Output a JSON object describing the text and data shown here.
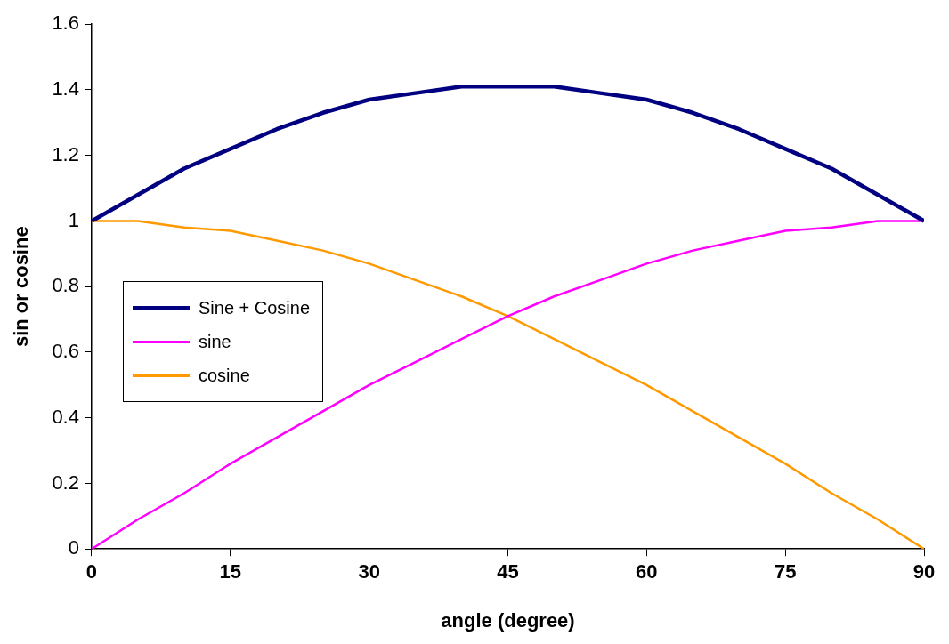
{
  "chart_data": {
    "type": "line",
    "xlabel": "angle (degree)",
    "ylabel": "sin or cosine",
    "x": [
      0,
      5,
      10,
      15,
      20,
      25,
      30,
      35,
      40,
      45,
      50,
      55,
      60,
      65,
      70,
      75,
      80,
      85,
      90
    ],
    "series": [
      {
        "name": "Sine + Cosine",
        "color": "#000080",
        "values": [
          1,
          1.08,
          1.16,
          1.22,
          1.28,
          1.33,
          1.37,
          1.39,
          1.41,
          1.41,
          1.41,
          1.39,
          1.37,
          1.33,
          1.28,
          1.22,
          1.16,
          1.08,
          1
        ]
      },
      {
        "name": "sine",
        "color": "#ff00ff",
        "values": [
          0,
          0.09,
          0.17,
          0.26,
          0.34,
          0.42,
          0.5,
          0.57,
          0.64,
          0.71,
          0.77,
          0.82,
          0.87,
          0.91,
          0.94,
          0.97,
          0.98,
          1,
          1
        ]
      },
      {
        "name": "cosine",
        "color": "#ff9900",
        "values": [
          1,
          1,
          0.98,
          0.97,
          0.94,
          0.91,
          0.87,
          0.82,
          0.77,
          0.71,
          0.64,
          0.57,
          0.5,
          0.42,
          0.34,
          0.26,
          0.17,
          0.09,
          0
        ]
      }
    ],
    "xlim": [
      0,
      90
    ],
    "xticks": [
      0,
      15,
      30,
      45,
      60,
      75,
      90
    ],
    "ylim": [
      0,
      1.6
    ],
    "yticks": [
      0,
      0.2,
      0.4,
      0.6,
      0.8,
      1,
      1.2,
      1.4,
      1.6
    ],
    "grid": false,
    "legend": "left",
    "marker": "none",
    "line_style": "solid"
  }
}
